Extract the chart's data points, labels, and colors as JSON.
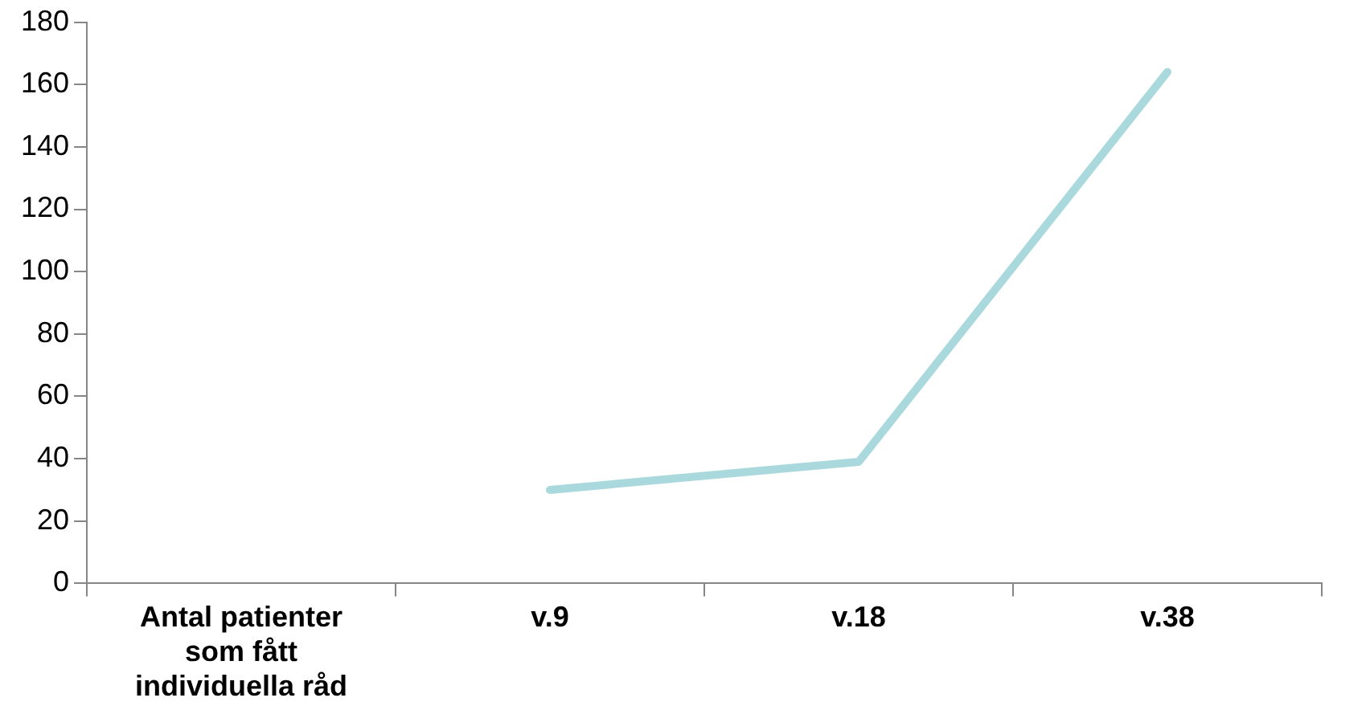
{
  "chart_data": {
    "type": "line",
    "categories": [
      "Antal patienter som fått individuella råd",
      "v.9",
      "v.18",
      "v.38"
    ],
    "series": [
      {
        "color": "#a9d9dc",
        "values": [
          null,
          30,
          39,
          164
        ]
      }
    ],
    "ylim": [
      0,
      180
    ],
    "yticks": [
      0,
      20,
      40,
      60,
      80,
      100,
      120,
      140,
      160,
      180
    ],
    "grid": false,
    "legend": false,
    "marker": "none",
    "line_style": "solid"
  }
}
